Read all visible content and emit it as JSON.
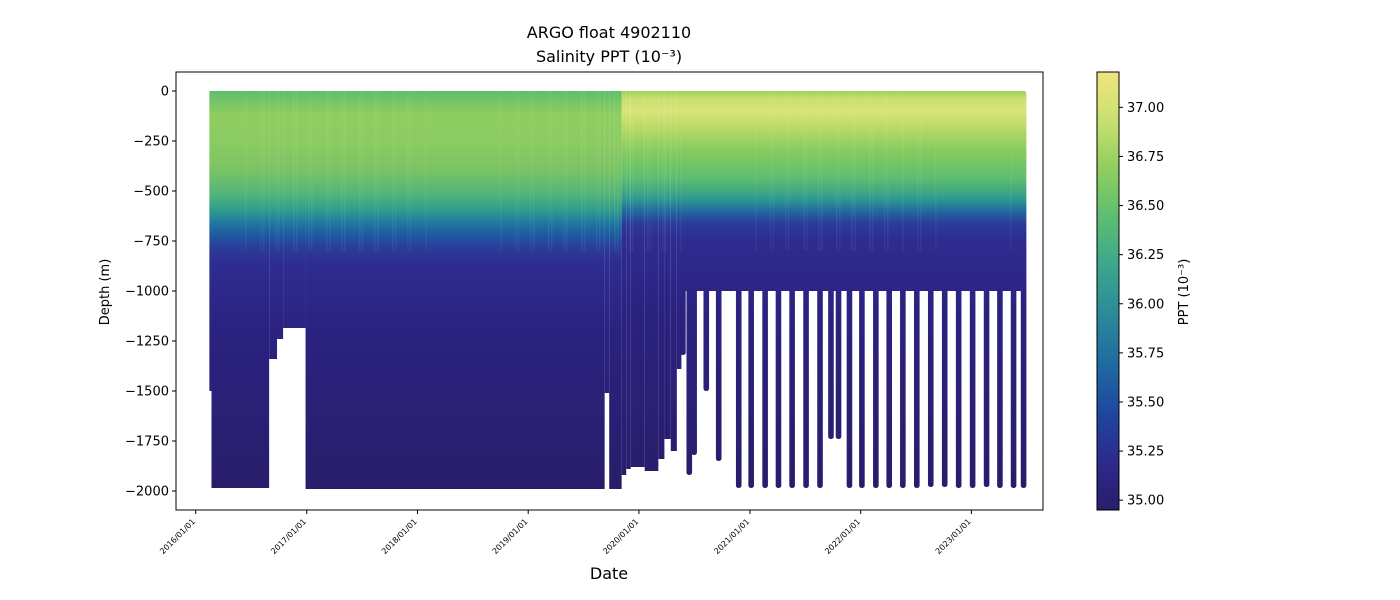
{
  "chart_data": {
    "type": "scatter",
    "title": "ARGO float 4902110",
    "subtitle": "Salinity PPT (10⁻³)",
    "xlabel": "Date",
    "ylabel": "Depth (m)",
    "xlim": [
      "2015-10-28",
      "2023-08-25"
    ],
    "ylim": [
      -2095,
      95
    ],
    "y_ticks": [
      0,
      -250,
      -500,
      -750,
      -1000,
      -1250,
      -1500,
      -1750,
      -2000
    ],
    "x_ticks": [
      "2016/01/01",
      "2017/01/01",
      "2018/01/01",
      "2019/01/01",
      "2020/01/01",
      "2021/01/01",
      "2022/01/01",
      "2023/01/01"
    ],
    "grid": false,
    "colorbar": {
      "label": "PPT (10⁻³)",
      "range": [
        34.95,
        37.18
      ],
      "ticks": [
        "35.00",
        "35.25",
        "35.50",
        "35.75",
        "36.00",
        "36.25",
        "36.50",
        "36.75",
        "37.00"
      ],
      "colormap": [
        "#2a1e6b",
        "#2d2a8c",
        "#1e48a0",
        "#1f6aa0",
        "#2b8a9a",
        "#3aa68d",
        "#5cbd72",
        "#8fce5f",
        "#c8e070",
        "#f0e67d"
      ]
    },
    "float_start": "2016-02-15",
    "float_end": "2023-06-25",
    "profile_max_depth_segments": [
      {
        "start": "2016-02-15",
        "end": "2016-02-22",
        "depth": -1500
      },
      {
        "start": "2016-02-22",
        "end": "2016-08-30",
        "depth": -1985
      },
      {
        "start": "2016-08-30",
        "end": "2016-09-25",
        "depth": -1340
      },
      {
        "start": "2016-09-25",
        "end": "2016-10-15",
        "depth": -1240
      },
      {
        "start": "2016-10-15",
        "end": "2016-12-28",
        "depth": -1185
      },
      {
        "start": "2016-12-28",
        "end": "2019-09-10",
        "depth": -1990
      },
      {
        "start": "2019-09-10",
        "end": "2019-09-25",
        "depth": -1510
      },
      {
        "start": "2019-09-25",
        "end": "2019-11-05",
        "depth": -1990
      },
      {
        "start": "2019-11-05",
        "end": "2019-11-20",
        "depth": -1920
      },
      {
        "start": "2019-11-20",
        "end": "2019-12-05",
        "depth": -1890
      },
      {
        "start": "2019-12-05",
        "end": "2020-01-20",
        "depth": -1880
      },
      {
        "start": "2020-01-20",
        "end": "2020-03-05",
        "depth": -1900
      },
      {
        "start": "2020-03-05",
        "end": "2020-03-25",
        "depth": -1840
      },
      {
        "start": "2020-03-25",
        "end": "2020-04-15",
        "depth": -1740
      },
      {
        "start": "2020-04-15",
        "end": "2020-05-05",
        "depth": -1800
      },
      {
        "start": "2020-05-05",
        "end": "2020-05-20",
        "depth": -1390
      }
    ],
    "spike_profiles": [
      {
        "date": "2020-05-25",
        "depth": -1320
      },
      {
        "date": "2020-06-15",
        "depth": -1920
      },
      {
        "date": "2020-07-01",
        "depth": -1820
      },
      {
        "date": "2020-08-10",
        "depth": -1500
      },
      {
        "date": "2020-09-20",
        "depth": -1850
      },
      {
        "date": "2020-11-25",
        "depth": -1985
      },
      {
        "date": "2021-01-05",
        "depth": -1985
      },
      {
        "date": "2021-02-20",
        "depth": -1985
      },
      {
        "date": "2021-04-05",
        "depth": -1985
      },
      {
        "date": "2021-05-20",
        "depth": -1985
      },
      {
        "date": "2021-07-05",
        "depth": -1985
      },
      {
        "date": "2021-08-20",
        "depth": -1985
      },
      {
        "date": "2021-09-25",
        "depth": -1740
      },
      {
        "date": "2021-10-20",
        "depth": -1740
      },
      {
        "date": "2021-11-25",
        "depth": -1985
      },
      {
        "date": "2022-01-05",
        "depth": -1985
      },
      {
        "date": "2022-02-20",
        "depth": -1985
      },
      {
        "date": "2022-04-05",
        "depth": -1985
      },
      {
        "date": "2022-05-20",
        "depth": -1985
      },
      {
        "date": "2022-07-05",
        "depth": -1985
      },
      {
        "date": "2022-08-20",
        "depth": -1980
      },
      {
        "date": "2022-10-05",
        "depth": -1980
      },
      {
        "date": "2022-11-20",
        "depth": -1985
      },
      {
        "date": "2023-01-05",
        "depth": -1985
      },
      {
        "date": "2023-02-20",
        "depth": -1980
      },
      {
        "date": "2023-04-05",
        "depth": -1985
      },
      {
        "date": "2023-05-20",
        "depth": -1985
      },
      {
        "date": "2023-06-22",
        "depth": -1985
      }
    ]
  }
}
